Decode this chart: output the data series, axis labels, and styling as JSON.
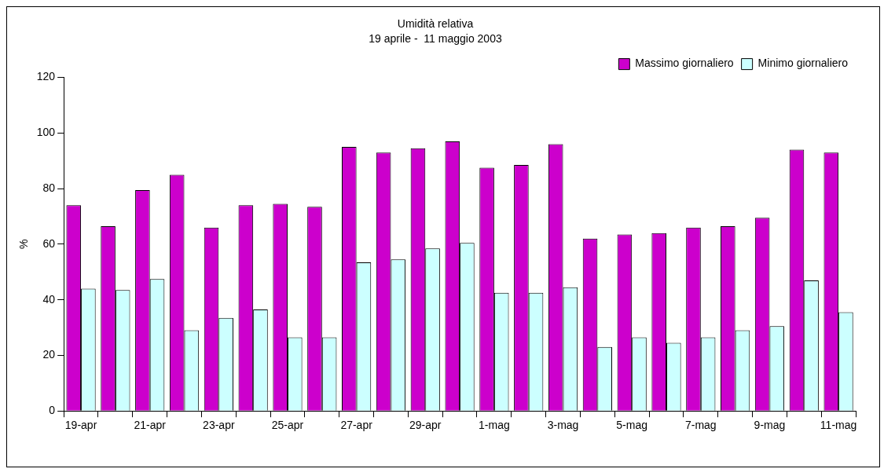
{
  "chart_data": {
    "type": "bar",
    "title": "Umidità relativa",
    "subtitle": "19 aprile -  11 maggio 2003",
    "ylabel": "%",
    "categories": [
      "19-apr",
      null,
      "21-apr",
      null,
      "23-apr",
      null,
      "25-apr",
      null,
      "27-apr",
      null,
      "29-apr",
      null,
      "1-mag",
      null,
      "3-mag",
      null,
      "5-mag",
      null,
      "7-mag",
      null,
      "9-mag",
      null,
      "11-mag"
    ],
    "series": [
      {
        "name": "Massimo giornaliero",
        "color": "#cc00cc",
        "values": [
          74,
          66.5,
          79.5,
          85,
          66,
          74,
          74.5,
          73.5,
          95,
          93,
          94.5,
          97,
          87.5,
          88.5,
          96,
          62,
          63.5,
          64,
          66,
          66.5,
          69.5,
          94,
          93
        ]
      },
      {
        "name": "Minimo giornaliero",
        "color": "#ccffff",
        "values": [
          44,
          43.5,
          47.5,
          29,
          33.5,
          36.5,
          26.5,
          26.5,
          53.5,
          54.5,
          58.5,
          60.5,
          42.5,
          42.5,
          44.5,
          23,
          26.5,
          24.5,
          26.5,
          29,
          30.5,
          47,
          35.5
        ]
      }
    ],
    "ylim": [
      0,
      120
    ],
    "yticks": [
      0,
      20,
      40,
      60,
      80,
      100,
      120
    ],
    "grid": false,
    "legend": "top right"
  }
}
